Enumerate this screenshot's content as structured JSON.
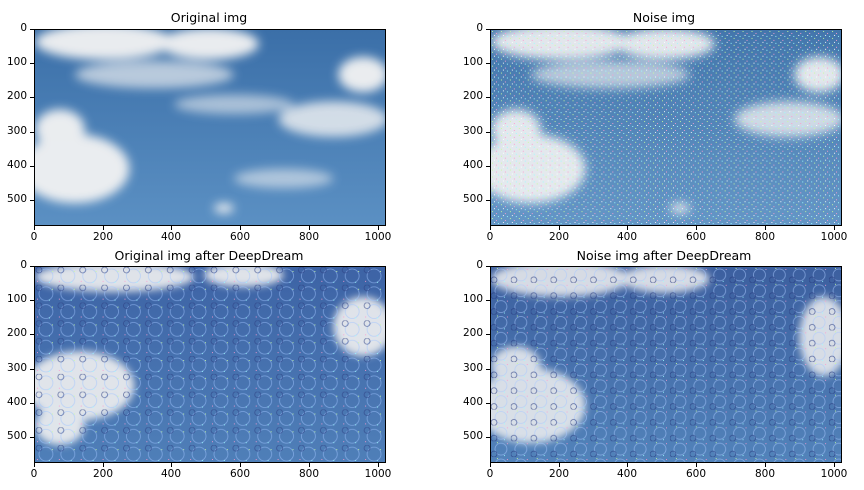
{
  "panels": [
    {
      "id": "p1",
      "title": "Original img",
      "variant": "original"
    },
    {
      "id": "p2",
      "title": "Noise img",
      "variant": "noise"
    },
    {
      "id": "p3",
      "title": "Original img after DeepDream",
      "variant": "dream-original"
    },
    {
      "id": "p4",
      "title": "Noise img after DeepDream",
      "variant": "dream-noise"
    }
  ],
  "axes": {
    "x_ticks": [
      "0",
      "200",
      "400",
      "600",
      "800",
      "1000"
    ],
    "x_values": [
      0,
      200,
      400,
      600,
      800,
      1000
    ],
    "y_ticks": [
      "0",
      "100",
      "200",
      "300",
      "400",
      "500"
    ],
    "y_values": [
      0,
      100,
      200,
      300,
      400,
      500
    ],
    "x_max": 1024,
    "y_max": 576
  },
  "colors": {
    "sky_top": "#3a6ea8",
    "sky_bottom": "#5d92c4",
    "cloud": "#f2f2f2",
    "noise_a": "#c8ff9a",
    "noise_b": "#ff9ad0",
    "noise_c": "#9affff"
  }
}
